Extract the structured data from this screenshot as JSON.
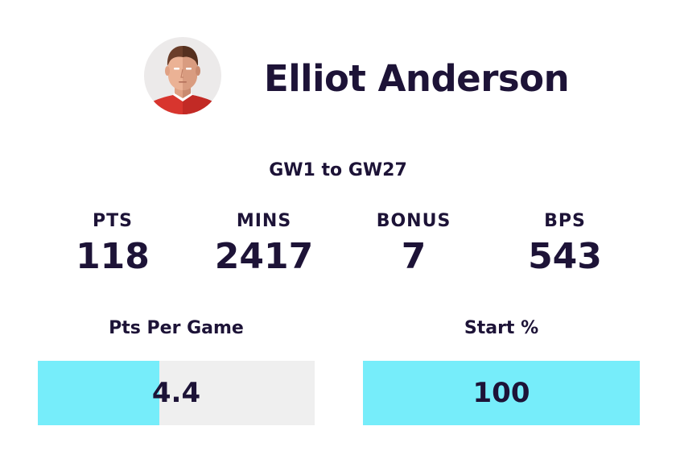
{
  "player": {
    "name": "Elliot Anderson"
  },
  "range_label": "GW1 to GW27",
  "stats": [
    {
      "label": "PTS",
      "value": "118"
    },
    {
      "label": "MINS",
      "value": "2417"
    },
    {
      "label": "BONUS",
      "value": "7"
    },
    {
      "label": "BPS",
      "value": "543"
    }
  ],
  "meters": [
    {
      "label": "Pts Per Game",
      "value": "4.4",
      "fill_fraction": 0.44
    },
    {
      "label": "Start %",
      "value": "100",
      "fill_fraction": 1.0
    }
  ],
  "colors": {
    "text": "#1d1337",
    "meter_fill": "#76edfa",
    "meter_track": "#efefef",
    "shirt": "#d8352e"
  }
}
